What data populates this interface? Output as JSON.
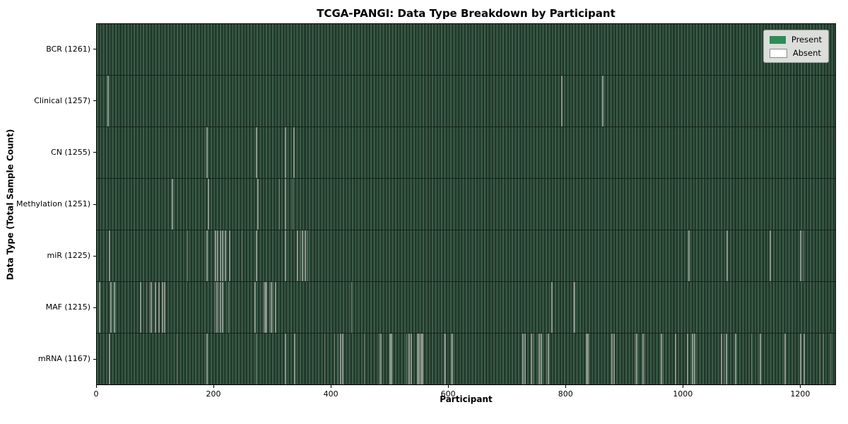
{
  "chart_data": {
    "type": "heatmap",
    "title": "TCGA-PANGI: Data Type Breakdown by Participant",
    "xlabel": "Participant",
    "ylabel": "Data Type (Total Sample Count)",
    "n_participants": 1261,
    "xlim": [
      0,
      1261
    ],
    "xticks": [
      0,
      200,
      400,
      600,
      800,
      1000,
      1200
    ],
    "grid": false,
    "legend_position": "upper right",
    "legend": [
      {
        "label": "Present",
        "color": "#2e8b57"
      },
      {
        "label": "Absent",
        "color": "#ffffff"
      }
    ],
    "colors": {
      "present_fill": "#2e8b57",
      "present_stripe_light": "#3c5f4b",
      "present_stripe_dark": "#243b2d",
      "absent_stripe": "#a9b2a8",
      "legend_bg": "#dcdedc"
    },
    "rows": [
      {
        "name": "BCR",
        "total": 1261,
        "label": "BCR (1261)",
        "absent": []
      },
      {
        "name": "Clinical",
        "total": 1257,
        "label": "Clinical (1257)",
        "absent": [
          18,
          19,
          793,
          863
        ]
      },
      {
        "name": "CN",
        "total": 1255,
        "label": "CN (1255)",
        "absent": [
          187,
          272,
          273,
          321,
          336,
          337
        ]
      },
      {
        "name": "Methylation",
        "total": 1251,
        "label": "Methylation (1251)",
        "absent": [
          128,
          190,
          191,
          274,
          275,
          311,
          321,
          322,
          334,
          335
        ]
      },
      {
        "name": "miR",
        "total": 1225,
        "label": "miR (1225)",
        "absent": [
          21,
          154,
          187,
          202,
          203,
          205,
          206,
          210,
          211,
          214,
          215,
          219,
          220,
          226,
          227,
          247,
          272,
          321,
          342,
          343,
          346,
          347,
          350,
          351,
          355,
          356,
          359,
          360,
          1010,
          1011,
          1075,
          1076,
          1149,
          1150,
          1201,
          1205
        ]
      },
      {
        "name": "MAF",
        "total": 1215,
        "label": "MAF (1215)",
        "absent": [
          4,
          23,
          29,
          74,
          84,
          89,
          92,
          99,
          105,
          111,
          112,
          113,
          115,
          116,
          201,
          202,
          204,
          205,
          207,
          208,
          210,
          211,
          214,
          215,
          224,
          269,
          283,
          284,
          286,
          287,
          289,
          294,
          295,
          297,
          298,
          300,
          301,
          304,
          305,
          434,
          435,
          776,
          777,
          813,
          815,
          816
        ]
      },
      {
        "name": "mRNA",
        "total": 1167,
        "label": "mRNA (1167)",
        "absent": [
          21,
          136,
          187,
          271,
          321,
          337,
          388,
          405,
          406,
          411,
          412,
          415,
          416,
          419,
          420,
          456,
          481,
          484,
          500,
          502,
          528,
          529,
          532,
          533,
          536,
          537,
          547,
          549,
          553,
          555,
          592,
          594,
          604,
          606,
          727,
          728,
          730,
          741,
          742,
          744,
          754,
          755,
          758,
          759,
          767,
          768,
          770,
          835,
          836,
          838,
          879,
          880,
          882,
          918,
          919,
          921,
          932,
          933,
          935,
          963,
          964,
          966,
          987,
          988,
          1008,
          1009,
          1016,
          1017,
          1020,
          1021,
          1066,
          1067,
          1070,
          1071,
          1074,
          1075,
          1090,
          1091,
          1117,
          1118,
          1132,
          1133,
          1174,
          1175,
          1201,
          1202,
          1207,
          1208,
          1234,
          1235,
          1240,
          1241,
          1252,
          1253
        ]
      }
    ]
  }
}
